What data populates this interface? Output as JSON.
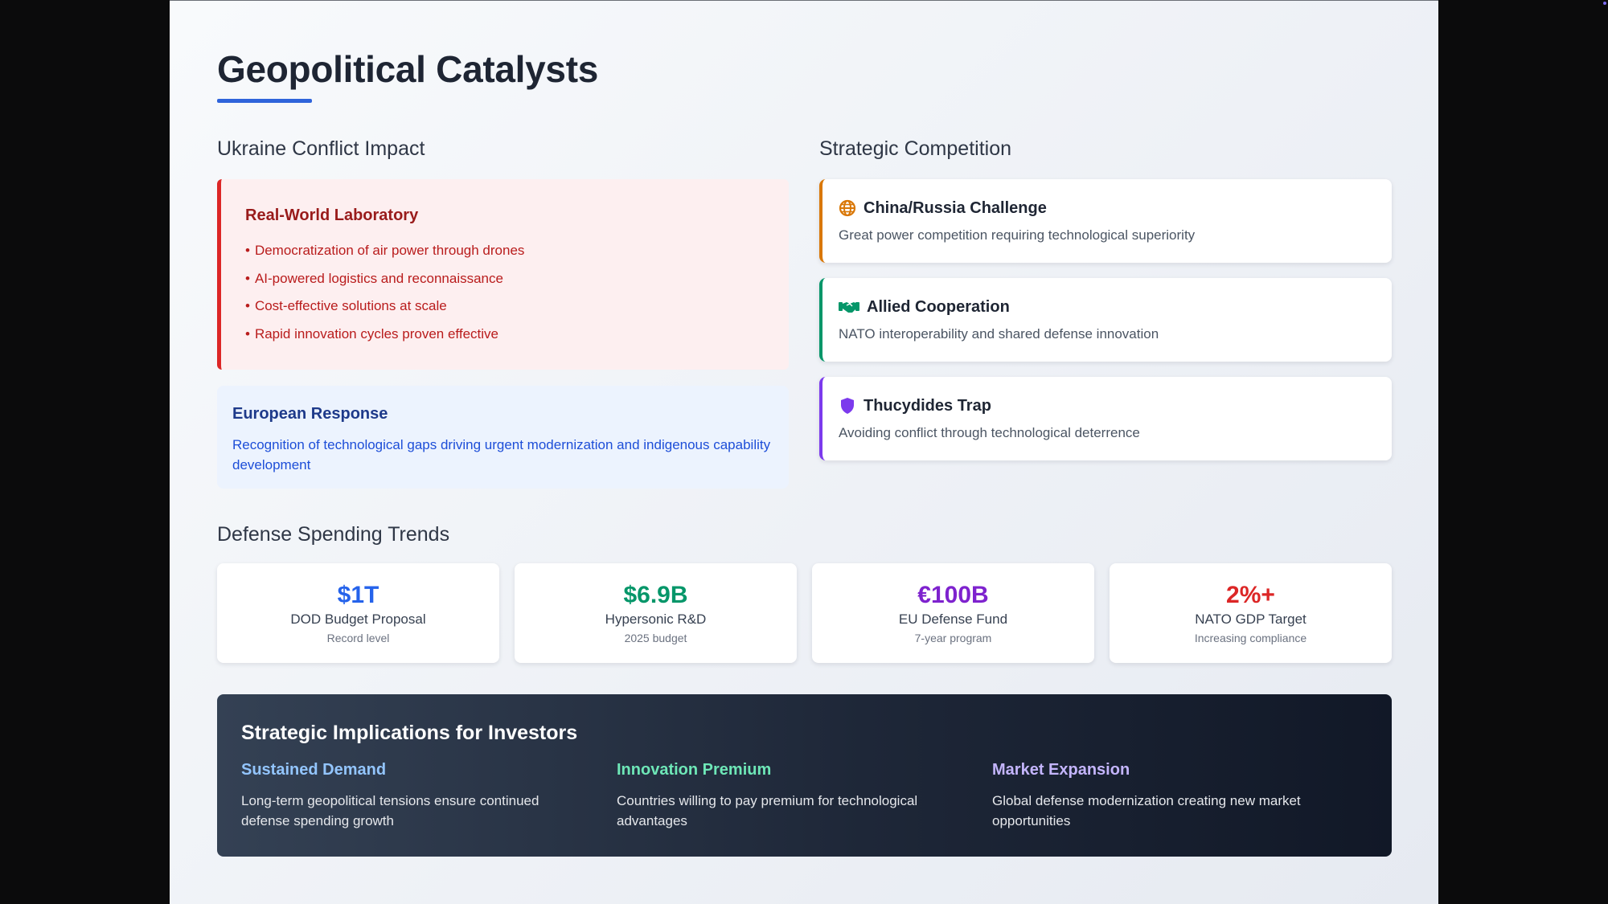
{
  "title": "Geopolitical Catalysts",
  "ukraine": {
    "heading": "Ukraine Conflict Impact",
    "lab": {
      "title": "Real-World Laboratory",
      "items": [
        "Democratization of air power through drones",
        "AI-powered logistics and reconnaissance",
        "Cost-effective solutions at scale",
        "Rapid innovation cycles proven effective"
      ]
    },
    "europe": {
      "title": "European Response",
      "text": "Recognition of technological gaps driving urgent modernization and indigenous capability development"
    }
  },
  "competition": {
    "heading": "Strategic Competition",
    "cards": [
      {
        "title": "China/Russia Challenge",
        "text": "Great power competition requiring technological superiority",
        "icon": "globe-icon",
        "color": "#d97706"
      },
      {
        "title": "Allied Cooperation",
        "text": "NATO interoperability and shared defense innovation",
        "icon": "handshake-icon",
        "color": "#059669"
      },
      {
        "title": "Thucydides Trap",
        "text": "Avoiding conflict through technological deterrence",
        "icon": "shield-icon",
        "color": "#7c3aed"
      }
    ]
  },
  "spending": {
    "heading": "Defense Spending Trends",
    "stats": [
      {
        "value": "$1T",
        "label": "DOD Budget Proposal",
        "sub": "Record level",
        "color": "#2563eb"
      },
      {
        "value": "$6.9B",
        "label": "Hypersonic R&D",
        "sub": "2025 budget",
        "color": "#059669"
      },
      {
        "value": "€100B",
        "label": "EU Defense Fund",
        "sub": "7-year program",
        "color": "#7e22ce"
      },
      {
        "value": "2%+",
        "label": "NATO GDP Target",
        "sub": "Increasing compliance",
        "color": "#dc2626"
      }
    ]
  },
  "implications": {
    "title": "Strategic Implications for Investors",
    "columns": [
      {
        "title": "Sustained Demand",
        "text": "Long-term geopolitical tensions ensure continued defense spending growth",
        "color": "#93c5fd"
      },
      {
        "title": "Innovation Premium",
        "text": "Countries willing to pay premium for technological advantages",
        "color": "#6ee7b7"
      },
      {
        "title": "Market Expansion",
        "text": "Global defense modernization creating new market opportunities",
        "color": "#c4b5fd"
      }
    ]
  }
}
